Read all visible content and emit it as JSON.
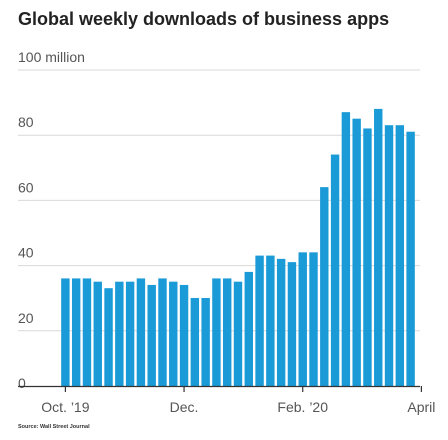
{
  "chart_data": {
    "type": "bar",
    "title": "Global weekly downloads of business apps",
    "ylabel": "",
    "xlabel": "",
    "source": "Source: Wall Street Journal",
    "ylim": [
      0,
      100
    ],
    "y_ticks": [
      {
        "value": 100,
        "label": "100 million"
      },
      {
        "value": 80,
        "label": "80"
      },
      {
        "value": 60,
        "label": "60"
      },
      {
        "value": 40,
        "label": "40"
      },
      {
        "value": 20,
        "label": "20"
      },
      {
        "value": 0,
        "label": "0"
      }
    ],
    "x_ticks": [
      {
        "index": 0.5,
        "label": "Oct. ’19"
      },
      {
        "index": 11.5,
        "label": "Dec."
      },
      {
        "index": 22.5,
        "label": "Feb. ’20"
      },
      {
        "index": 33.5,
        "label": "April"
      }
    ],
    "grid": true,
    "color": "#1a9ad6",
    "values": [
      33,
      33,
      33,
      32,
      30,
      32,
      32,
      33,
      31,
      33,
      32,
      31,
      27,
      27,
      33,
      33,
      32,
      35,
      40,
      40,
      39,
      38,
      41,
      41,
      61,
      71,
      84,
      82,
      79,
      85,
      80,
      80,
      78
    ]
  }
}
